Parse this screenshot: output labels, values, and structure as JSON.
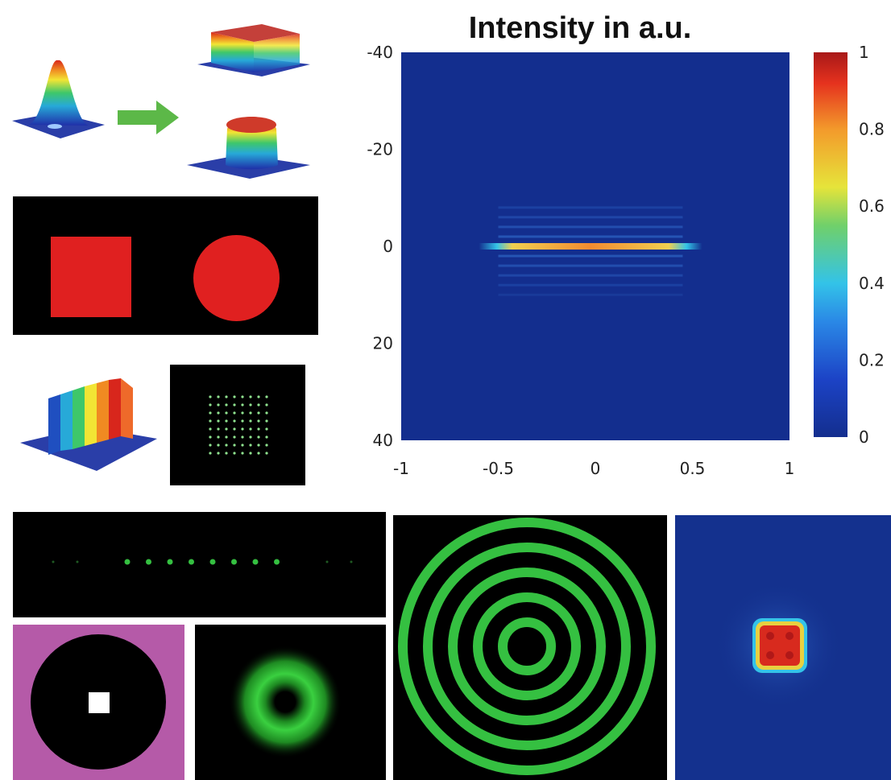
{
  "chart_data": {
    "type": "heatmap",
    "title": "Intensity in a.u.",
    "xlabel": "",
    "ylabel": "",
    "xlim": [
      -1,
      1
    ],
    "ylim": [
      40,
      -40
    ],
    "x_ticks": [
      "-1",
      "-0.5",
      "0",
      "0.5",
      "1"
    ],
    "y_ticks": [
      "-40",
      "-20",
      "0",
      "20",
      "40"
    ],
    "x_tick_values": [
      -1,
      -0.5,
      0,
      0.5,
      1
    ],
    "y_tick_values": [
      -40,
      -20,
      0,
      20,
      40
    ],
    "colorbar": {
      "range": [
        0,
        1
      ],
      "ticks": [
        "1",
        "0.8",
        "0.6",
        "0.4",
        "0.2",
        "0"
      ],
      "tick_values": [
        1,
        0.8,
        0.6,
        0.4,
        0.2,
        0
      ],
      "colormap": "jet"
    },
    "line_focus": {
      "x_range": [
        -0.45,
        0.4
      ],
      "y": 0,
      "peak_intensity": 1,
      "sidelobe_y": [
        -8,
        -6,
        -4,
        -2,
        2,
        4,
        6,
        8,
        10
      ]
    },
    "background_color": "#132e8e"
  },
  "panels": {
    "gaussian_to_flattop_icons": [
      "gaussian-beam-3d-icon",
      "arrow-right-icon",
      "square-flattop-3d-icon",
      "round-flattop-3d-icon"
    ],
    "shape_panel_icons": [
      "red-square-icon",
      "red-circle-icon"
    ],
    "spot_array_grid": {
      "rows": 8,
      "cols": 8
    },
    "spot_line_count": 8,
    "ring_count": 5,
    "colors": {
      "beam_green": "#35c041",
      "shape_red": "#e02020",
      "mask_background": "#b55aa8"
    }
  }
}
